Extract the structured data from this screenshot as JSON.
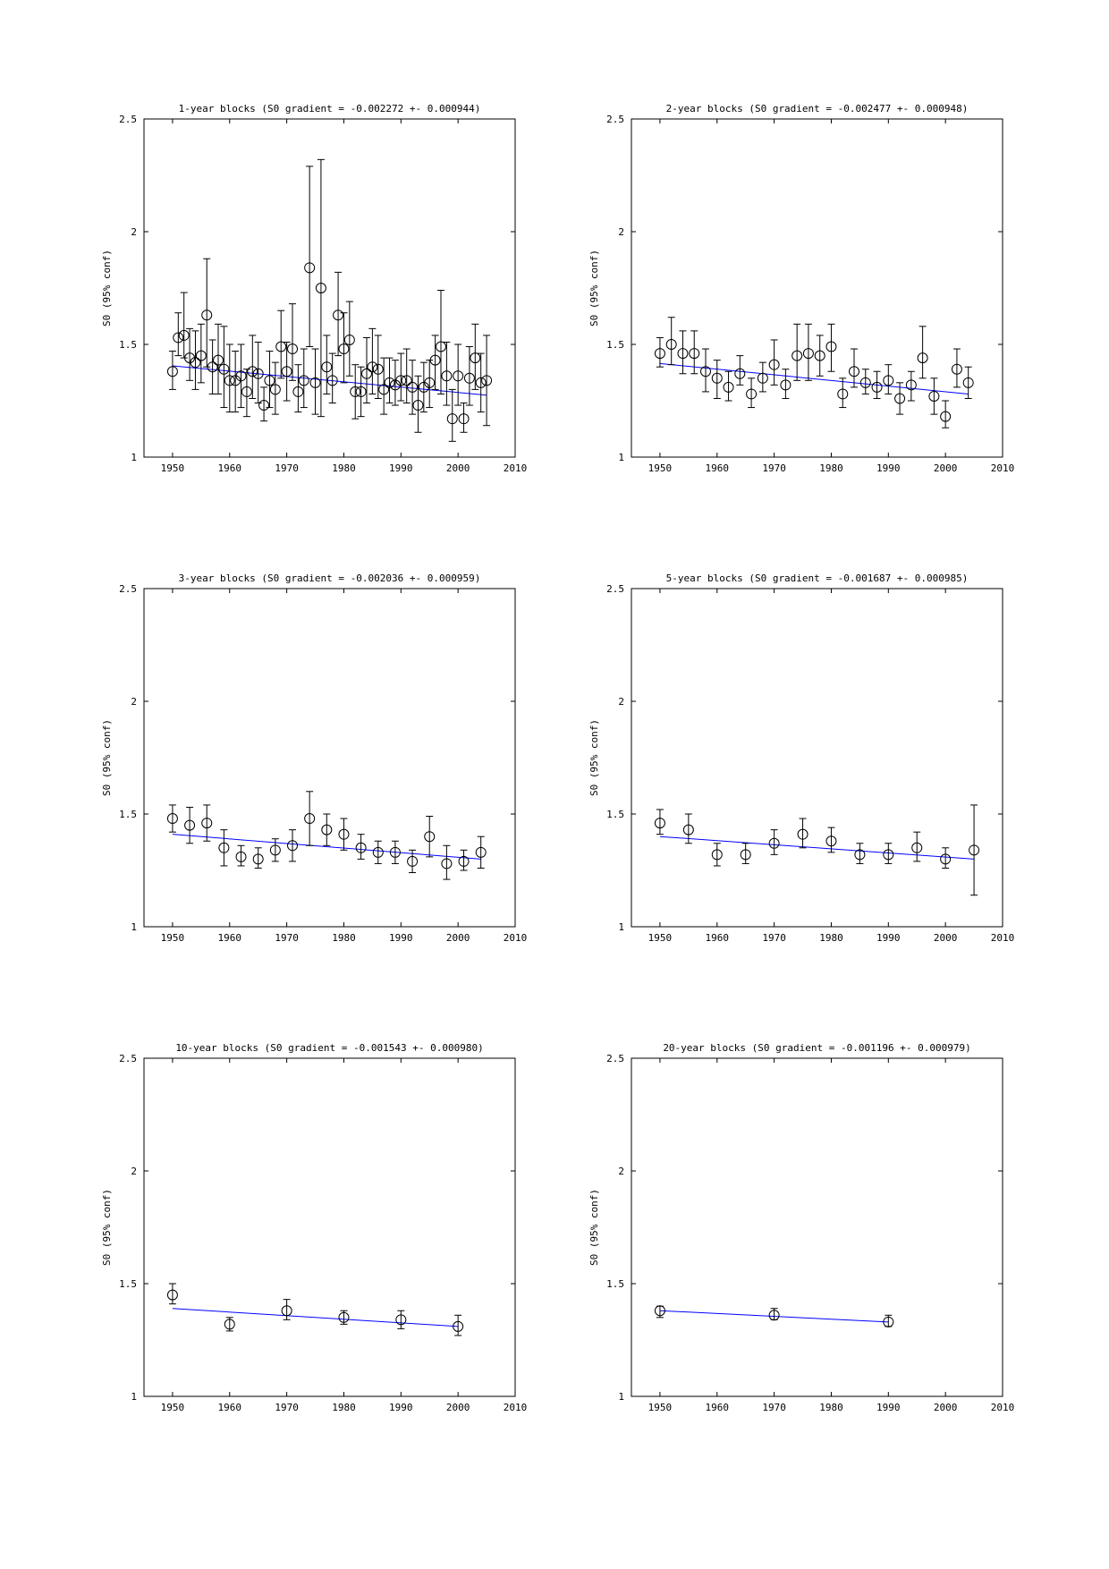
{
  "chart_data": [
    {
      "type": "scatter",
      "title": "1-year blocks (S0 gradient = -0.002272 +- 0.000944)",
      "ylabel": "S0 (95% conf)",
      "xlim": [
        1945,
        2010
      ],
      "ylim": [
        1,
        2.5
      ],
      "xticks": [
        "1950",
        "1960",
        "1970",
        "1980",
        "1990",
        "2000",
        "2010"
      ],
      "yticks": [
        "1",
        "1.5",
        "2",
        "2.5"
      ],
      "series": [
        {
          "x": [
            1950,
            1951,
            1952,
            1953,
            1954,
            1955,
            1956,
            1957,
            1958,
            1959,
            1960,
            1961,
            1962,
            1963,
            1964,
            1965,
            1966,
            1967,
            1968,
            1969,
            1970,
            1971,
            1972,
            1973,
            1974,
            1975,
            1976,
            1977,
            1978,
            1979,
            1980,
            1981,
            1982,
            1983,
            1984,
            1985,
            1986,
            1987,
            1988,
            1989,
            1990,
            1991,
            1992,
            1993,
            1994,
            1995,
            1996,
            1997,
            1998,
            1999,
            2000,
            2001,
            2002,
            2003,
            2004,
            2005
          ],
          "y": [
            1.38,
            1.53,
            1.54,
            1.44,
            1.42,
            1.45,
            1.63,
            1.4,
            1.43,
            1.39,
            1.34,
            1.34,
            1.36,
            1.29,
            1.38,
            1.37,
            1.23,
            1.34,
            1.3,
            1.49,
            1.38,
            1.48,
            1.29,
            1.34,
            1.84,
            1.33,
            1.75,
            1.4,
            1.34,
            1.63,
            1.48,
            1.52,
            1.29,
            1.29,
            1.37,
            1.4,
            1.39,
            1.3,
            1.33,
            1.32,
            1.34,
            1.34,
            1.31,
            1.23,
            1.31,
            1.33,
            1.43,
            1.49,
            1.36,
            1.17,
            1.36,
            1.17,
            1.35,
            1.44,
            1.33,
            1.34
          ],
          "err_low": [
            1.3,
            1.45,
            1.44,
            1.34,
            1.3,
            1.33,
            1.4,
            1.28,
            1.28,
            1.22,
            1.2,
            1.2,
            1.22,
            1.18,
            1.26,
            1.24,
            1.16,
            1.22,
            1.19,
            1.35,
            1.25,
            1.34,
            1.2,
            1.22,
            1.49,
            1.19,
            1.18,
            1.28,
            1.24,
            1.45,
            1.33,
            1.36,
            1.17,
            1.18,
            1.24,
            1.28,
            1.26,
            1.19,
            1.24,
            1.23,
            1.25,
            1.24,
            1.19,
            1.11,
            1.2,
            1.22,
            1.3,
            1.28,
            1.23,
            1.07,
            1.23,
            1.11,
            1.23,
            1.3,
            1.2,
            1.14
          ],
          "err_high": [
            1.47,
            1.64,
            1.73,
            1.57,
            1.56,
            1.59,
            1.88,
            1.52,
            1.59,
            1.58,
            1.5,
            1.47,
            1.5,
            1.39,
            1.54,
            1.51,
            1.31,
            1.47,
            1.42,
            1.65,
            1.51,
            1.68,
            1.41,
            1.48,
            2.29,
            1.48,
            2.32,
            1.54,
            1.46,
            1.82,
            1.64,
            1.69,
            1.41,
            1.4,
            1.53,
            1.57,
            1.54,
            1.44,
            1.44,
            1.43,
            1.46,
            1.48,
            1.43,
            1.36,
            1.42,
            1.43,
            1.54,
            1.74,
            1.51,
            1.3,
            1.5,
            1.24,
            1.49,
            1.59,
            1.46,
            1.54
          ]
        }
      ],
      "fit": {
        "x": [
          1950,
          2005
        ],
        "y": [
          1.405,
          1.275
        ],
        "color": "#0000ff"
      }
    },
    {
      "type": "scatter",
      "title": "2-year blocks (S0 gradient = -0.002477 +- 0.000948)",
      "ylabel": "S0 (95% conf)",
      "xlim": [
        1945,
        2010
      ],
      "ylim": [
        1,
        2.5
      ],
      "xticks": [
        "1950",
        "1960",
        "1970",
        "1980",
        "1990",
        "2000",
        "2010"
      ],
      "yticks": [
        "1",
        "1.5",
        "2",
        "2.5"
      ],
      "series": [
        {
          "x": [
            1950,
            1952,
            1954,
            1956,
            1958,
            1960,
            1962,
            1964,
            1966,
            1968,
            1970,
            1972,
            1974,
            1976,
            1978,
            1980,
            1982,
            1984,
            1986,
            1988,
            1990,
            1992,
            1994,
            1996,
            1998,
            2000,
            2002,
            2004
          ],
          "y": [
            1.46,
            1.5,
            1.46,
            1.46,
            1.38,
            1.35,
            1.31,
            1.37,
            1.28,
            1.35,
            1.41,
            1.32,
            1.45,
            1.46,
            1.45,
            1.49,
            1.28,
            1.38,
            1.33,
            1.31,
            1.34,
            1.26,
            1.32,
            1.44,
            1.27,
            1.18,
            1.39,
            1.33
          ],
          "err_low": [
            1.4,
            1.41,
            1.37,
            1.37,
            1.29,
            1.26,
            1.25,
            1.32,
            1.22,
            1.29,
            1.32,
            1.26,
            1.34,
            1.34,
            1.36,
            1.38,
            1.22,
            1.31,
            1.28,
            1.26,
            1.28,
            1.19,
            1.25,
            1.35,
            1.19,
            1.13,
            1.31,
            1.26
          ],
          "err_high": [
            1.53,
            1.62,
            1.56,
            1.56,
            1.48,
            1.43,
            1.38,
            1.45,
            1.35,
            1.42,
            1.52,
            1.39,
            1.59,
            1.59,
            1.54,
            1.59,
            1.35,
            1.48,
            1.39,
            1.38,
            1.41,
            1.33,
            1.38,
            1.58,
            1.35,
            1.25,
            1.48,
            1.4
          ]
        }
      ],
      "fit": {
        "x": [
          1950,
          2004
        ],
        "y": [
          1.415,
          1.28
        ],
        "color": "#0000ff"
      }
    },
    {
      "type": "scatter",
      "title": "3-year blocks (S0 gradient = -0.002036 +- 0.000959)",
      "ylabel": "S0 (95% conf)",
      "xlim": [
        1945,
        2010
      ],
      "ylim": [
        1,
        2.5
      ],
      "xticks": [
        "1950",
        "1960",
        "1970",
        "1980",
        "1990",
        "2000",
        "2010"
      ],
      "yticks": [
        "1",
        "1.5",
        "2",
        "2.5"
      ],
      "series": [
        {
          "x": [
            1950,
            1953,
            1956,
            1959,
            1962,
            1965,
            1968,
            1971,
            1974,
            1977,
            1980,
            1983,
            1986,
            1989,
            1992,
            1995,
            1998,
            2001,
            2004
          ],
          "y": [
            1.48,
            1.45,
            1.46,
            1.35,
            1.31,
            1.3,
            1.34,
            1.36,
            1.48,
            1.43,
            1.41,
            1.35,
            1.33,
            1.33,
            1.29,
            1.4,
            1.28,
            1.29,
            1.33
          ],
          "err_low": [
            1.42,
            1.37,
            1.38,
            1.27,
            1.27,
            1.26,
            1.29,
            1.29,
            1.36,
            1.36,
            1.34,
            1.3,
            1.28,
            1.28,
            1.24,
            1.31,
            1.21,
            1.25,
            1.26
          ],
          "err_high": [
            1.54,
            1.53,
            1.54,
            1.43,
            1.36,
            1.35,
            1.39,
            1.43,
            1.6,
            1.5,
            1.48,
            1.41,
            1.38,
            1.38,
            1.34,
            1.49,
            1.36,
            1.34,
            1.4
          ]
        }
      ],
      "fit": {
        "x": [
          1950,
          2004
        ],
        "y": [
          1.41,
          1.3
        ],
        "color": "#0000ff"
      }
    },
    {
      "type": "scatter",
      "title": "5-year blocks (S0 gradient = -0.001687 +- 0.000985)",
      "ylabel": "S0 (95% conf)",
      "xlim": [
        1945,
        2010
      ],
      "ylim": [
        1,
        2.5
      ],
      "xticks": [
        "1950",
        "1960",
        "1970",
        "1980",
        "1990",
        "2000",
        "2010"
      ],
      "yticks": [
        "1",
        "1.5",
        "2",
        "2.5"
      ],
      "series": [
        {
          "x": [
            1950,
            1955,
            1960,
            1965,
            1970,
            1975,
            1980,
            1985,
            1990,
            1995,
            2000,
            2005
          ],
          "y": [
            1.46,
            1.43,
            1.32,
            1.32,
            1.37,
            1.41,
            1.38,
            1.32,
            1.32,
            1.35,
            1.3,
            1.34
          ],
          "err_low": [
            1.41,
            1.37,
            1.27,
            1.28,
            1.32,
            1.35,
            1.33,
            1.28,
            1.28,
            1.29,
            1.26,
            1.14
          ],
          "err_high": [
            1.52,
            1.5,
            1.37,
            1.37,
            1.43,
            1.48,
            1.44,
            1.37,
            1.37,
            1.42,
            1.35,
            1.54
          ]
        }
      ],
      "fit": {
        "x": [
          1950,
          2005
        ],
        "y": [
          1.4,
          1.3
        ],
        "color": "#0000ff"
      }
    },
    {
      "type": "scatter",
      "title": "10-year blocks (S0 gradient = -0.001543 +- 0.000980)",
      "ylabel": "S0 (95% conf)",
      "xlim": [
        1945,
        2010
      ],
      "ylim": [
        1,
        2.5
      ],
      "xticks": [
        "1950",
        "1960",
        "1970",
        "1980",
        "1990",
        "2000",
        "2010"
      ],
      "yticks": [
        "1",
        "1.5",
        "2",
        "2.5"
      ],
      "series": [
        {
          "x": [
            1950,
            1960,
            1970,
            1980,
            1990,
            2000
          ],
          "y": [
            1.45,
            1.32,
            1.38,
            1.35,
            1.34,
            1.31
          ],
          "err_low": [
            1.41,
            1.29,
            1.34,
            1.32,
            1.3,
            1.27
          ],
          "err_high": [
            1.5,
            1.35,
            1.43,
            1.38,
            1.38,
            1.36
          ]
        }
      ],
      "fit": {
        "x": [
          1950,
          2000
        ],
        "y": [
          1.39,
          1.31
        ],
        "color": "#0000ff"
      }
    },
    {
      "type": "scatter",
      "title": "20-year blocks (S0 gradient = -0.001196 +- 0.000979)",
      "ylabel": "S0 (95% conf)",
      "xlim": [
        1945,
        2010
      ],
      "ylim": [
        1,
        2.5
      ],
      "xticks": [
        "1950",
        "1960",
        "1970",
        "1980",
        "1990",
        "2000",
        "2010"
      ],
      "yticks": [
        "1",
        "1.5",
        "2",
        "2.5"
      ],
      "series": [
        {
          "x": [
            1950,
            1970,
            1990
          ],
          "y": [
            1.38,
            1.36,
            1.33
          ],
          "err_low": [
            1.35,
            1.34,
            1.31
          ],
          "err_high": [
            1.4,
            1.39,
            1.36
          ]
        }
      ],
      "fit": {
        "x": [
          1950,
          1990
        ],
        "y": [
          1.38,
          1.33
        ],
        "color": "#0000ff"
      }
    }
  ]
}
